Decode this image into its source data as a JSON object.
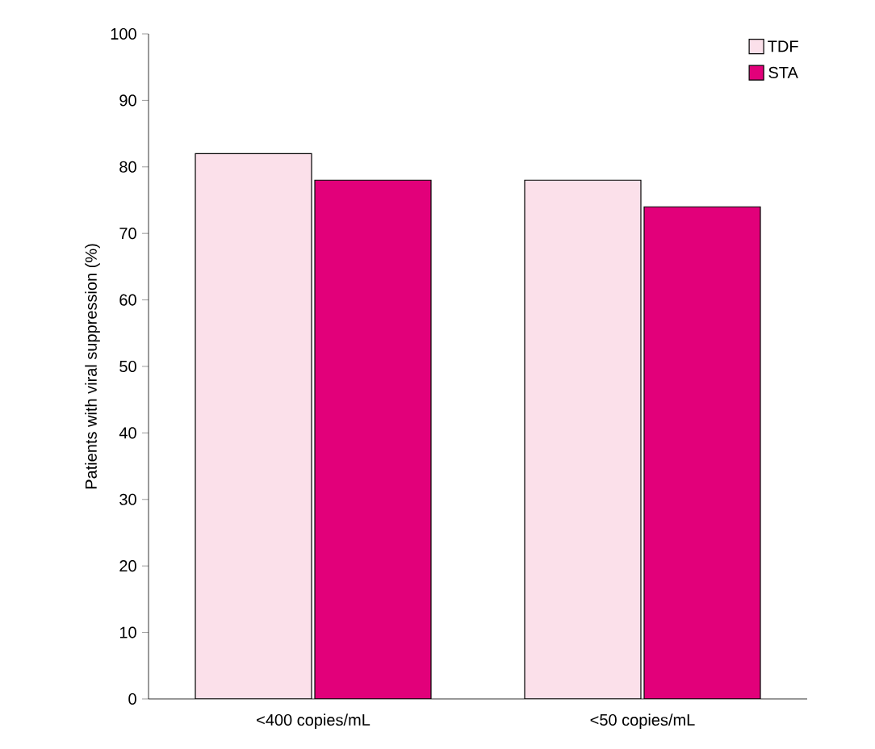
{
  "chart_data": {
    "type": "bar",
    "ylabel": "Patients with viral suppression (%)",
    "categories": [
      "<400 copies/mL",
      "<50 copies/mL"
    ],
    "series": [
      {
        "name": "TDF",
        "color": "#fbe0ea",
        "values": [
          82,
          78
        ]
      },
      {
        "name": "STA",
        "color": "#e2007a",
        "values": [
          78,
          74
        ]
      }
    ],
    "ylim": [
      0,
      100
    ],
    "yticks": [
      0,
      10,
      20,
      30,
      40,
      50,
      60,
      70,
      80,
      90,
      100
    ],
    "grid": false,
    "legend": "top right"
  }
}
